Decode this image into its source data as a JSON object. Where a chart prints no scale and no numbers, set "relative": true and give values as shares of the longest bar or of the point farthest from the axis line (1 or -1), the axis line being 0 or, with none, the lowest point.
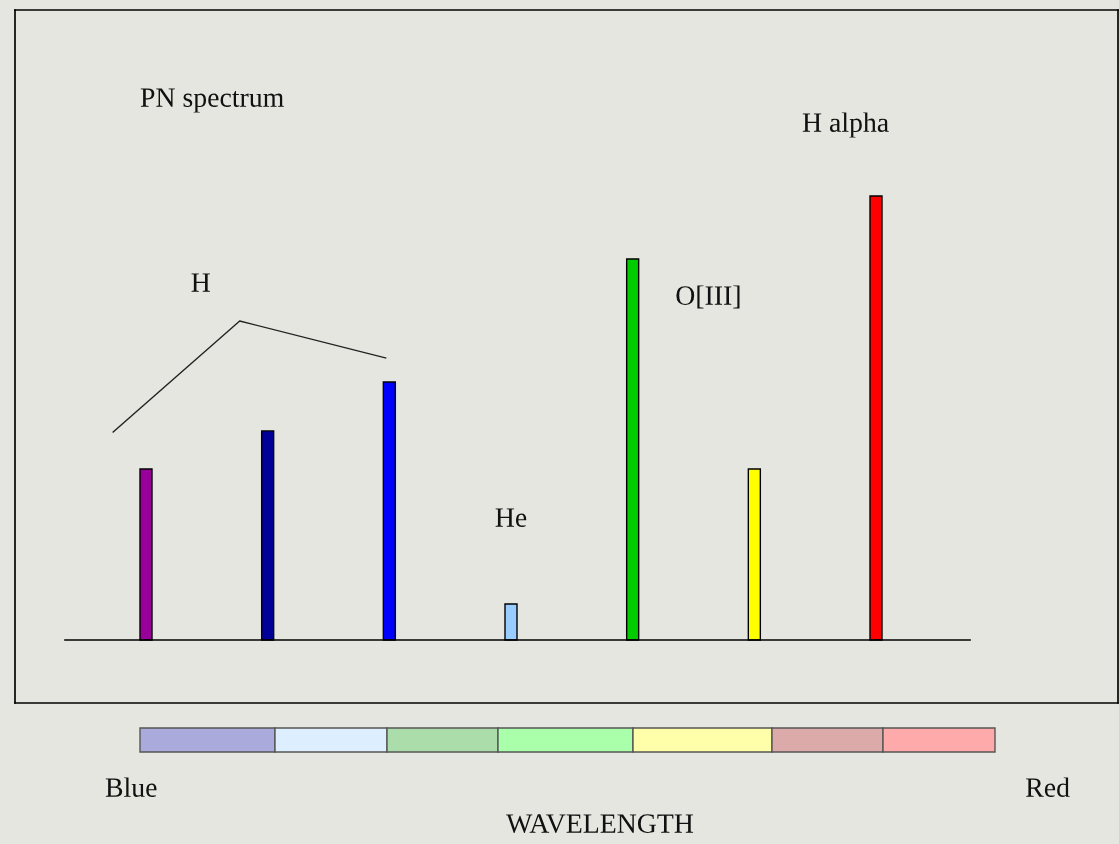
{
  "chart_data": {
    "type": "bar",
    "relative": true,
    "categories": [
      null,
      null,
      null,
      null,
      null,
      null,
      null
    ],
    "values": [
      0.385,
      0.471,
      0.581,
      0.081,
      0.858,
      0.385,
      1
    ],
    "colors": [
      "#990099",
      "#000099",
      "#0000ff",
      "#99ccff",
      "#00cc00",
      "#ffff00",
      "#ff0000"
    ],
    "annotations": [
      "PN spectrum",
      "H alpha",
      "H",
      "O[III]",
      "He",
      "Blue",
      "Red",
      "WAVELENGTH"
    ]
  }
}
